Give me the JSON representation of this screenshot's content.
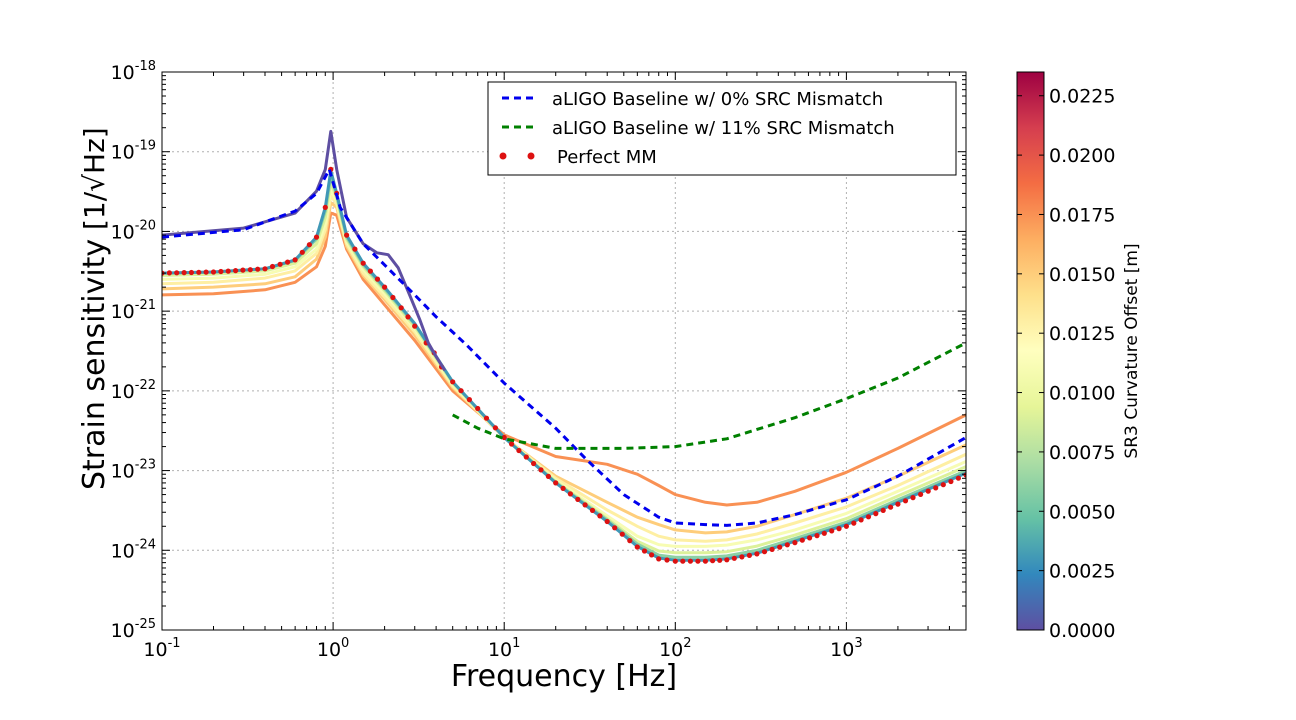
{
  "chart_data": {
    "type": "line",
    "xlabel": "Frequency [Hz]",
    "ylabel": "Strain sensitivity",
    "ylabel_unit": "[1/√Hz]",
    "xscale": "log",
    "yscale": "log",
    "xlim": [
      0.1,
      5000
    ],
    "ylim": [
      1e-25,
      1e-18
    ],
    "grid": true,
    "x_ticks": [
      {
        "value": 0.1,
        "base": "10",
        "exp": "-1"
      },
      {
        "value": 1,
        "base": "10",
        "exp": "0"
      },
      {
        "value": 10,
        "base": "10",
        "exp": "1"
      },
      {
        "value": 100,
        "base": "10",
        "exp": "2"
      },
      {
        "value": 1000,
        "base": "10",
        "exp": "3"
      }
    ],
    "y_ticks": [
      {
        "value": 1e-18,
        "base": "10",
        "exp": "-18"
      },
      {
        "value": 1e-19,
        "base": "10",
        "exp": "-19"
      },
      {
        "value": 1e-20,
        "base": "10",
        "exp": "-20"
      },
      {
        "value": 1e-21,
        "base": "10",
        "exp": "-21"
      },
      {
        "value": 1e-22,
        "base": "10",
        "exp": "-22"
      },
      {
        "value": 1e-23,
        "base": "10",
        "exp": "-23"
      },
      {
        "value": 1e-24,
        "base": "10",
        "exp": "-24"
      },
      {
        "value": 1e-25,
        "base": "10",
        "exp": "-25"
      }
    ],
    "legend": {
      "placement": "top-right",
      "entries": [
        {
          "label": "aLIGO Baseline w/ 0% SRC Mismatch",
          "color": "#0000ee",
          "style": "dashed"
        },
        {
          "label": "aLIGO Baseline w/ 11%  SRC Mismatch",
          "color": "#008000",
          "style": "dashed"
        },
        {
          "label": "Perfect MM",
          "color": "#dd1111",
          "style": "dots"
        }
      ]
    },
    "colorbar": {
      "label": "SR3 Curvature Offset [m]",
      "colormap": "Spectral",
      "range": [
        0.0,
        0.0235
      ],
      "ticks": [
        "0.0000",
        "0.0025",
        "0.0050",
        "0.0075",
        "0.0100",
        "0.0125",
        "0.0150",
        "0.0175",
        "0.0200",
        "0.0225"
      ]
    },
    "series": [
      {
        "key": "baseline0",
        "color": "#0000ee",
        "style": "dashed",
        "points": [
          [
            0.1,
            8.5e-21
          ],
          [
            0.3,
            1.05e-20
          ],
          [
            0.6,
            1.8e-20
          ],
          [
            0.8,
            3e-20
          ],
          [
            0.95,
            6e-20
          ],
          [
            1.1,
            2e-20
          ],
          [
            1.5,
            7e-21
          ],
          [
            2,
            3.8e-21
          ],
          [
            3,
            1.6e-21
          ],
          [
            4,
            8.5e-22
          ],
          [
            6,
            3.8e-22
          ],
          [
            10,
            1.25e-22
          ],
          [
            20,
            3.4e-23
          ],
          [
            30,
            1.4e-23
          ],
          [
            50,
            5e-24
          ],
          [
            80,
            2.6e-24
          ],
          [
            100,
            2.2e-24
          ],
          [
            150,
            2.1e-24
          ],
          [
            200,
            2.05e-24
          ],
          [
            300,
            2.2e-24
          ],
          [
            500,
            2.8e-24
          ],
          [
            1000,
            4.3e-24
          ],
          [
            2000,
            8.5e-24
          ],
          [
            5000,
            2.6e-23
          ]
        ]
      },
      {
        "key": "baseline11",
        "color": "#008000",
        "style": "dashed",
        "points": [
          [
            5,
            5e-23
          ],
          [
            7,
            3.4e-23
          ],
          [
            10,
            2.5e-23
          ],
          [
            20,
            1.9e-23
          ],
          [
            50,
            1.9e-23
          ],
          [
            100,
            2e-23
          ],
          [
            200,
            2.5e-23
          ],
          [
            500,
            4.6e-23
          ],
          [
            1000,
            8e-23
          ],
          [
            2000,
            1.45e-22
          ],
          [
            5000,
            4e-22
          ]
        ]
      },
      {
        "key": "perfect",
        "color": "#dd1111",
        "style": "dots",
        "points": [
          [
            0.1,
            3e-21
          ],
          [
            0.2,
            3.1e-21
          ],
          [
            0.4,
            3.4e-21
          ],
          [
            0.6,
            4.4e-21
          ],
          [
            0.8,
            8.5e-21
          ],
          [
            0.9,
            2e-20
          ],
          [
            0.97,
            6e-20
          ],
          [
            1.05,
            3e-20
          ],
          [
            1.2,
            9e-21
          ],
          [
            1.5,
            4e-21
          ],
          [
            2,
            2e-21
          ],
          [
            2.5,
            1.1e-21
          ],
          [
            3,
            6.5e-22
          ],
          [
            3.5,
            4e-22
          ],
          [
            3.9,
            3e-22
          ],
          [
            4.3,
            2e-22
          ],
          [
            5,
            1.3e-22
          ],
          [
            7,
            6e-23
          ],
          [
            10,
            2.6e-23
          ],
          [
            20,
            7e-24
          ],
          [
            40,
            2.3e-24
          ],
          [
            60,
            1.1e-24
          ],
          [
            80,
            7.8e-25
          ],
          [
            100,
            7.3e-25
          ],
          [
            150,
            7.3e-25
          ],
          [
            200,
            7.6e-25
          ],
          [
            300,
            9e-25
          ],
          [
            500,
            1.25e-24
          ],
          [
            1000,
            2e-24
          ],
          [
            2000,
            3.8e-24
          ],
          [
            5000,
            8.8e-24
          ]
        ]
      },
      {
        "key": "offset-0.0000",
        "offset": 0.0,
        "points": [
          [
            0.1,
            9e-21
          ],
          [
            0.3,
            1.1e-20
          ],
          [
            0.6,
            1.7e-20
          ],
          [
            0.8,
            3.2e-20
          ],
          [
            0.9,
            6e-20
          ],
          [
            0.97,
            1.8e-19
          ],
          [
            1.05,
            6e-20
          ],
          [
            1.2,
            1.5e-20
          ],
          [
            1.5,
            7e-21
          ],
          [
            1.8,
            5.4e-21
          ],
          [
            2.1,
            5.1e-21
          ],
          [
            2.4,
            3.5e-21
          ],
          [
            2.8,
            1.6e-21
          ],
          [
            3.2,
            8e-22
          ],
          [
            3.6,
            4e-22
          ],
          [
            4,
            2.7e-22
          ],
          [
            4.5,
            1.8e-22
          ]
        ]
      },
      {
        "key": "offset-0.0030",
        "offset": 0.003,
        "points": [
          [
            0.1,
            3e-21
          ],
          [
            0.2,
            3.1e-21
          ],
          [
            0.4,
            3.4e-21
          ],
          [
            0.6,
            4.4e-21
          ],
          [
            0.8,
            8.5e-21
          ],
          [
            0.9,
            2e-20
          ],
          [
            0.97,
            5.8e-20
          ],
          [
            1.05,
            3e-20
          ],
          [
            1.2,
            9e-21
          ],
          [
            1.5,
            4e-21
          ],
          [
            2,
            2e-21
          ],
          [
            3,
            7e-22
          ],
          [
            5,
            1.3e-22
          ],
          [
            10,
            2.6e-23
          ],
          [
            20,
            7e-24
          ],
          [
            40,
            2.3e-24
          ],
          [
            60,
            1.12e-24
          ],
          [
            80,
            8e-25
          ],
          [
            100,
            7.5e-25
          ],
          [
            150,
            7.5e-25
          ],
          [
            200,
            7.8e-25
          ],
          [
            300,
            9.2e-25
          ],
          [
            500,
            1.3e-24
          ],
          [
            1000,
            2.1e-24
          ],
          [
            2000,
            4e-24
          ],
          [
            5000,
            9.3e-24
          ]
        ]
      },
      {
        "key": "offset-0.0060",
        "offset": 0.006,
        "points": [
          [
            0.1,
            3e-21
          ],
          [
            0.2,
            3.1e-21
          ],
          [
            0.4,
            3.4e-21
          ],
          [
            0.6,
            4.3e-21
          ],
          [
            0.8,
            8e-21
          ],
          [
            0.9,
            1.8e-20
          ],
          [
            0.97,
            5e-20
          ],
          [
            1.05,
            2.8e-20
          ],
          [
            1.2,
            8.5e-21
          ],
          [
            1.5,
            3.8e-21
          ],
          [
            2,
            1.9e-21
          ],
          [
            3,
            6.8e-22
          ],
          [
            5,
            1.3e-22
          ],
          [
            10,
            2.6e-23
          ],
          [
            20,
            7.1e-24
          ],
          [
            40,
            2.4e-24
          ],
          [
            60,
            1.2e-24
          ],
          [
            80,
            8.7e-25
          ],
          [
            100,
            8.2e-25
          ],
          [
            150,
            8.2e-25
          ],
          [
            200,
            8.5e-25
          ],
          [
            300,
            1e-24
          ],
          [
            500,
            1.4e-24
          ],
          [
            1000,
            2.25e-24
          ],
          [
            2000,
            4.3e-24
          ],
          [
            5000,
            1e-23
          ]
        ]
      },
      {
        "key": "offset-0.0090",
        "offset": 0.009,
        "points": [
          [
            0.1,
            2.8e-21
          ],
          [
            0.2,
            2.9e-21
          ],
          [
            0.4,
            3.2e-21
          ],
          [
            0.6,
            4e-21
          ],
          [
            0.8,
            7e-21
          ],
          [
            0.9,
            1.5e-20
          ],
          [
            0.97,
            4.2e-20
          ],
          [
            1.05,
            2.6e-20
          ],
          [
            1.2,
            8e-21
          ],
          [
            1.5,
            3.6e-21
          ],
          [
            2,
            1.8e-21
          ],
          [
            3,
            6.4e-22
          ],
          [
            5,
            1.25e-22
          ],
          [
            10,
            2.6e-23
          ],
          [
            20,
            7.3e-24
          ],
          [
            40,
            2.5e-24
          ],
          [
            60,
            1.3e-24
          ],
          [
            80,
            9.8e-25
          ],
          [
            100,
            9.3e-25
          ],
          [
            150,
            9.3e-25
          ],
          [
            200,
            9.6e-25
          ],
          [
            300,
            1.13e-24
          ],
          [
            500,
            1.55e-24
          ],
          [
            1000,
            2.5e-24
          ],
          [
            2000,
            4.8e-24
          ],
          [
            5000,
            1.12e-23
          ]
        ]
      },
      {
        "key": "offset-0.0110",
        "offset": 0.011,
        "points": [
          [
            0.1,
            2.5e-21
          ],
          [
            0.2,
            2.6e-21
          ],
          [
            0.4,
            2.9e-21
          ],
          [
            0.6,
            3.6e-21
          ],
          [
            0.8,
            6e-21
          ],
          [
            0.9,
            1.25e-20
          ],
          [
            0.97,
            3.4e-20
          ],
          [
            1.05,
            2.4e-20
          ],
          [
            1.2,
            7.5e-21
          ],
          [
            1.5,
            3.3e-21
          ],
          [
            2,
            1.65e-21
          ],
          [
            3,
            6e-22
          ],
          [
            5,
            1.2e-22
          ],
          [
            10,
            2.6e-23
          ],
          [
            20,
            7.6e-24
          ],
          [
            40,
            2.7e-24
          ],
          [
            60,
            1.5e-24
          ],
          [
            80,
            1.18e-24
          ],
          [
            100,
            1.12e-24
          ],
          [
            150,
            1.12e-24
          ],
          [
            200,
            1.16e-24
          ],
          [
            300,
            1.35e-24
          ],
          [
            500,
            1.8e-24
          ],
          [
            1000,
            2.9e-24
          ],
          [
            2000,
            5.5e-24
          ],
          [
            5000,
            1.3e-23
          ]
        ]
      },
      {
        "key": "offset-0.0130",
        "offset": 0.013,
        "points": [
          [
            0.1,
            2.2e-21
          ],
          [
            0.2,
            2.3e-21
          ],
          [
            0.4,
            2.6e-21
          ],
          [
            0.6,
            3.2e-21
          ],
          [
            0.8,
            5.3e-21
          ],
          [
            0.9,
            1.05e-20
          ],
          [
            0.97,
            2.8e-20
          ],
          [
            1.05,
            2.2e-20
          ],
          [
            1.2,
            7e-21
          ],
          [
            1.5,
            3e-21
          ],
          [
            2,
            1.5e-21
          ],
          [
            3,
            5.5e-22
          ],
          [
            5,
            1.15e-22
          ],
          [
            10,
            2.6e-23
          ],
          [
            20,
            8e-24
          ],
          [
            40,
            3.2e-24
          ],
          [
            60,
            2e-24
          ],
          [
            80,
            1.5e-24
          ],
          [
            100,
            1.35e-24
          ],
          [
            150,
            1.3e-24
          ],
          [
            200,
            1.35e-24
          ],
          [
            300,
            1.6e-24
          ],
          [
            500,
            2.2e-24
          ],
          [
            1000,
            3.5e-24
          ],
          [
            2000,
            6.5e-24
          ],
          [
            5000,
            1.6e-23
          ]
        ]
      },
      {
        "key": "offset-0.0150",
        "offset": 0.015,
        "points": [
          [
            0.1,
            1.9e-21
          ],
          [
            0.2,
            2e-21
          ],
          [
            0.4,
            2.2e-21
          ],
          [
            0.6,
            2.7e-21
          ],
          [
            0.8,
            4.5e-21
          ],
          [
            0.9,
            8.5e-21
          ],
          [
            0.97,
            2.3e-20
          ],
          [
            1.05,
            2e-20
          ],
          [
            1.2,
            6.5e-21
          ],
          [
            1.5,
            2.8e-21
          ],
          [
            2,
            1.4e-21
          ],
          [
            3,
            5e-22
          ],
          [
            5,
            1.1e-22
          ],
          [
            10,
            2.6e-23
          ],
          [
            20,
            8.5e-24
          ],
          [
            40,
            4e-24
          ],
          [
            60,
            2.6e-24
          ],
          [
            80,
            2.1e-24
          ],
          [
            100,
            1.8e-24
          ],
          [
            150,
            1.65e-24
          ],
          [
            200,
            1.7e-24
          ],
          [
            300,
            2e-24
          ],
          [
            500,
            2.8e-24
          ],
          [
            1000,
            4.5e-24
          ],
          [
            2000,
            8.5e-24
          ],
          [
            5000,
            2.1e-23
          ]
        ]
      },
      {
        "key": "offset-0.0175",
        "offset": 0.0175,
        "points": [
          [
            0.1,
            1.6e-21
          ],
          [
            0.2,
            1.65e-21
          ],
          [
            0.4,
            1.85e-21
          ],
          [
            0.6,
            2.3e-21
          ],
          [
            0.8,
            3.6e-21
          ],
          [
            0.9,
            6.5e-21
          ],
          [
            0.97,
            1.7e-20
          ],
          [
            1.05,
            1.6e-20
          ],
          [
            1.2,
            6e-21
          ],
          [
            1.5,
            2.5e-21
          ],
          [
            2,
            1.2e-21
          ],
          [
            3,
            4.3e-22
          ],
          [
            5,
            1e-22
          ],
          [
            10,
            2.8e-23
          ],
          [
            20,
            1.5e-23
          ],
          [
            40,
            1.2e-23
          ],
          [
            60,
            9e-24
          ],
          [
            80,
            6.5e-24
          ],
          [
            100,
            5e-24
          ],
          [
            150,
            4e-24
          ],
          [
            200,
            3.7e-24
          ],
          [
            300,
            4e-24
          ],
          [
            500,
            5.5e-24
          ],
          [
            1000,
            9.5e-24
          ],
          [
            2000,
            1.9e-23
          ],
          [
            5000,
            5e-23
          ]
        ]
      }
    ]
  }
}
